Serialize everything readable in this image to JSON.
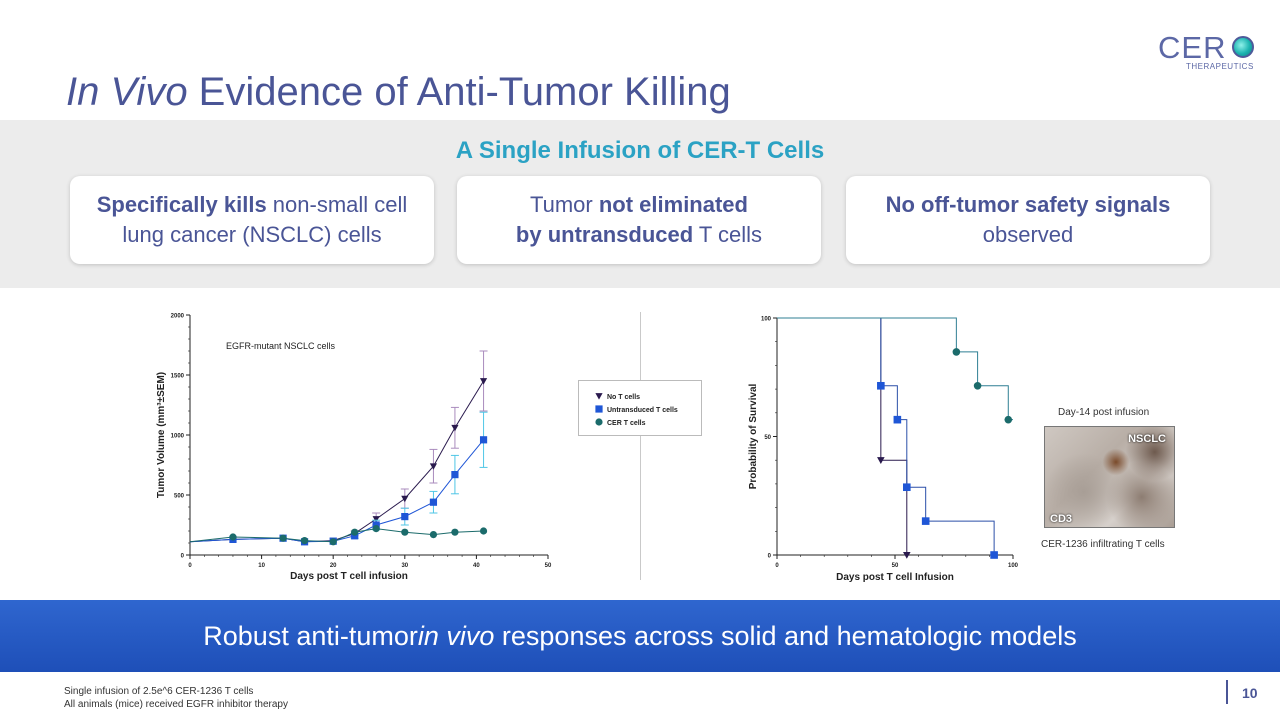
{
  "title": {
    "italic": "In Vivo",
    "rest": " Evidence of Anti-Tumor Killing"
  },
  "logo": {
    "text": "CER",
    "subtitle": "THERAPEUTICS"
  },
  "band_title": "A Single Infusion of CER-T Cells",
  "cards": [
    {
      "bold": "Specifically kills",
      "line1_rest": " non-small cell",
      "line2": "lung cancer (NSCLC) cells"
    },
    {
      "pre": "Tumor ",
      "bold1": "not eliminated",
      "bold2": "by untransduced",
      "post": " T cells"
    },
    {
      "bold": "No off-tumor safety signals",
      "line2": "observed"
    }
  ],
  "banner": {
    "pre": "Robust anti-tumor ",
    "italic": "in vivo",
    "post": " responses across solid and hematologic models"
  },
  "footnotes": [
    "Single infusion of 2.5e^6 CER-1236 T cells",
    "All animals (mice) received EGFR inhibitor therapy"
  ],
  "page_number": "10",
  "colors": {
    "no_t_cells": "#2a1a4e",
    "untransduced": "#1f56d6",
    "cer_t": "#1b6b6b",
    "err_no_t": "#a98bbd",
    "err_untr": "#4fc6e6",
    "title": "#4a5596",
    "accent": "#2ba2c4"
  },
  "legend": [
    "No T cells",
    "Untransduced T cells",
    "CER T cells"
  ],
  "micrograph": {
    "header": "Day-14 post infusion",
    "label_tumor": "NSCLC",
    "label_stain": "CD3",
    "caption": "CER-1236 infiltrating T cells"
  },
  "chart_data": [
    {
      "type": "line",
      "annotation": "EGFR-mutant NSCLC cells",
      "xlabel": "Days post T cell infusion",
      "ylabel": "Tumor Volume (mm³±SEM)",
      "xlim": [
        0,
        50
      ],
      "ylim": [
        0,
        2000
      ],
      "xticks": [
        0,
        10,
        20,
        30,
        40,
        50
      ],
      "yticks": [
        0,
        500,
        1000,
        1500,
        2000
      ],
      "series": [
        {
          "name": "No T cells",
          "marker": "triangle-down",
          "x": [
            0,
            6,
            13,
            16,
            20,
            23,
            26,
            30,
            34,
            37,
            41
          ],
          "y": [
            110,
            130,
            140,
            110,
            120,
            180,
            300,
            470,
            740,
            1060,
            1450
          ],
          "err": [
            0,
            0,
            0,
            0,
            0,
            20,
            50,
            80,
            140,
            170,
            250
          ]
        },
        {
          "name": "Untransduced T cells",
          "marker": "square",
          "x": [
            0,
            6,
            13,
            16,
            20,
            23,
            26,
            30,
            34,
            37,
            41
          ],
          "y": [
            110,
            130,
            140,
            110,
            115,
            160,
            250,
            320,
            440,
            670,
            960
          ],
          "err": [
            0,
            0,
            0,
            0,
            0,
            20,
            40,
            70,
            90,
            160,
            230
          ]
        },
        {
          "name": "CER T cells",
          "marker": "circle",
          "x": [
            0,
            6,
            13,
            16,
            20,
            23,
            26,
            30,
            34,
            37,
            41
          ],
          "y": [
            110,
            150,
            140,
            120,
            110,
            190,
            220,
            190,
            170,
            190,
            200
          ],
          "err": [
            0,
            0,
            0,
            0,
            0,
            0,
            0,
            0,
            0,
            0,
            0
          ]
        }
      ]
    },
    {
      "type": "line",
      "subtype": "survival-step",
      "xlabel": "Days post T cell Infusion",
      "ylabel": "Probability of Survival",
      "xlim": [
        0,
        100
      ],
      "ylim": [
        0,
        100
      ],
      "xticks": [
        0,
        50,
        100
      ],
      "yticks": [
        0,
        50,
        100
      ],
      "series": [
        {
          "name": "No T cells",
          "marker": "triangle-down",
          "steps": [
            [
              0,
              100
            ],
            [
              44,
              40
            ],
            [
              55,
              0
            ]
          ],
          "end": 55
        },
        {
          "name": "Untransduced T cells",
          "marker": "square",
          "steps": [
            [
              0,
              100
            ],
            [
              44,
              71.4
            ],
            [
              51,
              57.1
            ],
            [
              55,
              28.6
            ],
            [
              63,
              14.3
            ],
            [
              92,
              0
            ]
          ],
          "end": 92
        },
        {
          "name": "CER T cells",
          "marker": "circle",
          "steps": [
            [
              0,
              100
            ],
            [
              76,
              85.7
            ],
            [
              85,
              71.4
            ],
            [
              98,
              57.1
            ]
          ],
          "end": 100
        }
      ]
    }
  ]
}
